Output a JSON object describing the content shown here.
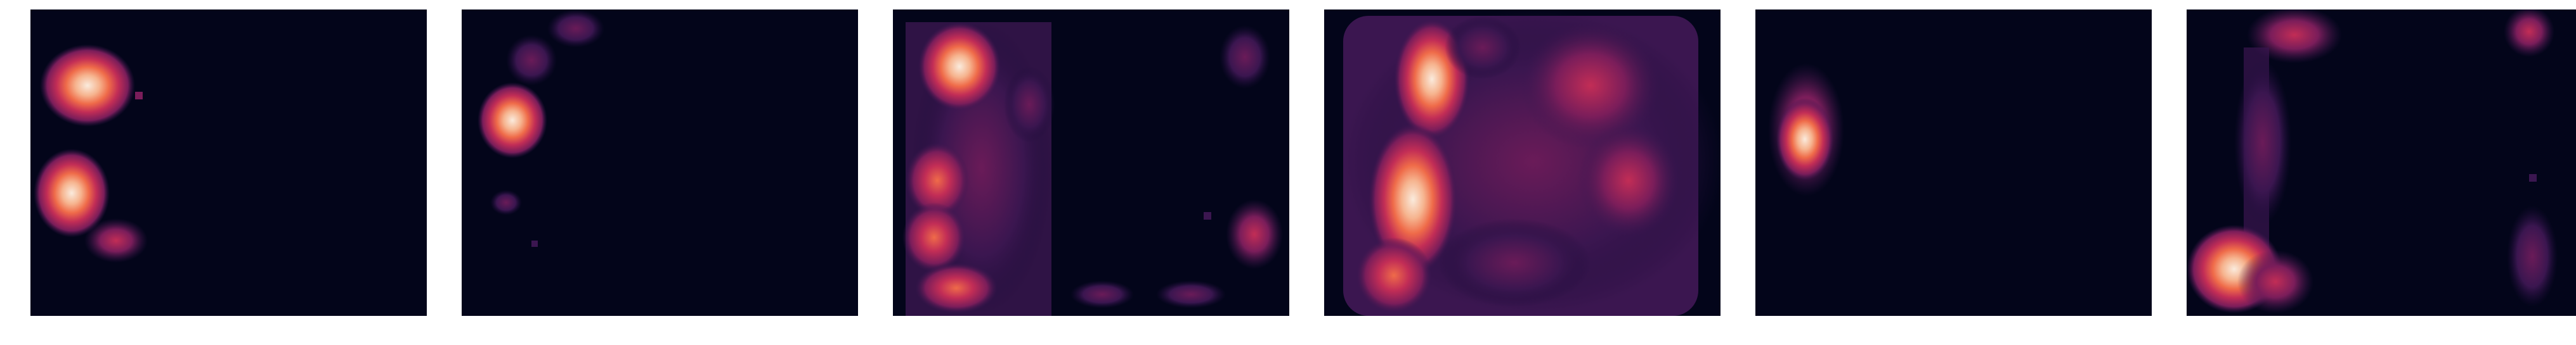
{
  "figure": {
    "colormap": [
      "#03051a",
      "#3b1650",
      "#7a1d5a",
      "#c22d56",
      "#ef6b49",
      "#f6b48f",
      "#faebdd"
    ],
    "background_color": "#03051a",
    "page_background": "#ffffff",
    "panel_count": 6
  }
}
